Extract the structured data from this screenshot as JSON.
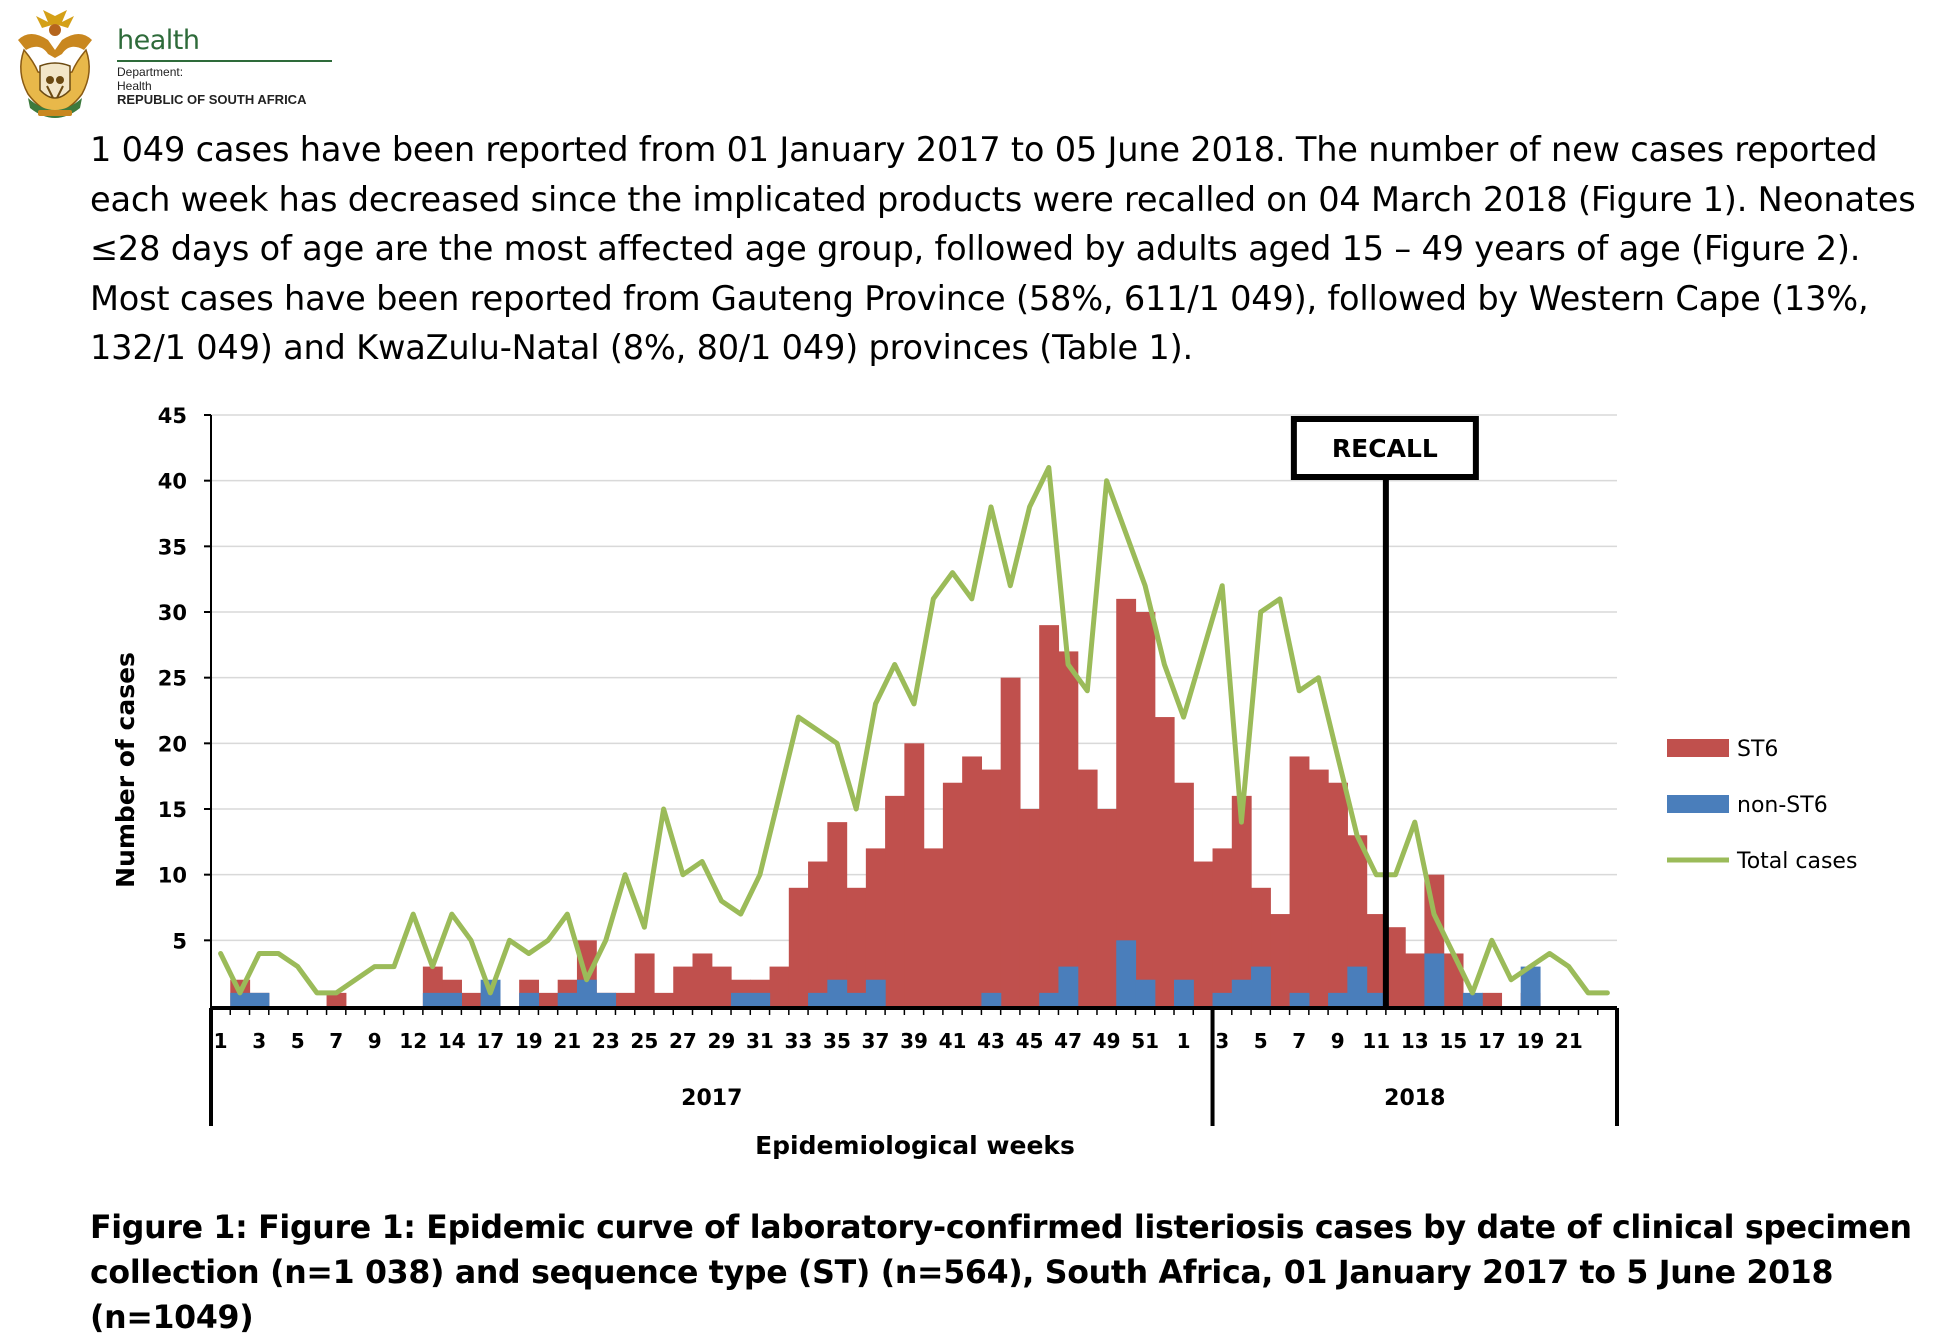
{
  "header": {
    "brand_word": "health",
    "brand_line1": "Department:",
    "brand_line2": "Health",
    "brand_line3": "REPUBLIC OF SOUTH AFRICA"
  },
  "intro_text": "1 049  cases have been reported from 01 January 2017 to 05 June 2018. The number of new cases reported each week has decreased since the implicated products were recalled on 04 March 2018 (Figure 1). Neonates ≤28 days of age are the most affected age group, followed by adults aged 15 – 49 years of age (Figure 2). Most cases have been reported from Gauteng Province (58%, 611/1 049), followed by Western Cape (13%, 132/1 049) and KwaZulu-Natal (8%, 80/1 049) provinces (Table 1).",
  "caption": "Figure 1: Figure 1: Epidemic curve of laboratory-confirmed listeriosis cases by date of clinical specimen collection (n=1 038) and sequence type (ST) (n=564), South Africa, 01 January 2017 to 5 June 2018 (n=1049)",
  "chart_data": {
    "type": "bar",
    "title": "",
    "xlabel": "Epidemiological weeks",
    "ylabel": "Number of cases",
    "ylim": [
      0,
      45
    ],
    "yticks": [
      5,
      10,
      15,
      20,
      25,
      30,
      35,
      40,
      45
    ],
    "grid": true,
    "legend_position": "right",
    "colors": {
      "ST6": "#c0504d",
      "non-ST6": "#4a7ebb",
      "Total cases": "#9bbb59"
    },
    "year_groups": [
      {
        "label": "2017",
        "weeks": 52
      },
      {
        "label": "2018",
        "weeks": 21
      }
    ],
    "weeks": [
      1,
      2,
      3,
      4,
      5,
      6,
      7,
      8,
      9,
      10,
      11,
      12,
      13,
      14,
      15,
      16,
      17,
      18,
      19,
      20,
      21,
      22,
      23,
      24,
      25,
      26,
      27,
      28,
      29,
      30,
      31,
      32,
      33,
      34,
      35,
      36,
      37,
      38,
      39,
      40,
      41,
      42,
      43,
      44,
      45,
      46,
      47,
      48,
      49,
      50,
      51,
      52,
      1,
      2,
      3,
      4,
      5,
      6,
      7,
      8,
      9,
      10,
      11,
      12,
      13,
      14,
      15,
      16,
      17,
      18,
      19,
      20,
      21
    ],
    "x_tick_labels": [
      "1",
      "",
      "3",
      "",
      "5",
      "",
      "7",
      "",
      "9",
      "",
      "12",
      "",
      "14",
      "",
      "17",
      "",
      "19",
      "",
      "21",
      "",
      "23",
      "",
      "25",
      "",
      "27",
      "",
      "29",
      "",
      "31",
      "",
      "33",
      "",
      "35",
      "",
      "37",
      "",
      "39",
      "",
      "41",
      "",
      "43",
      "",
      "45",
      "",
      "47",
      "",
      "49",
      "",
      "51",
      "",
      "1",
      "",
      "3",
      "",
      "5",
      "",
      "7",
      "",
      "9",
      "",
      "11",
      "",
      "13",
      "",
      "15",
      "",
      "17",
      "",
      "19",
      "",
      "21"
    ],
    "series": [
      {
        "name": "ST6",
        "values": [
          0,
          2,
          1,
          0,
          0,
          0,
          1,
          0,
          0,
          0,
          0,
          3,
          2,
          1,
          1,
          0,
          2,
          1,
          2,
          5,
          1,
          1,
          4,
          1,
          3,
          4,
          3,
          2,
          2,
          3,
          9,
          11,
          14,
          9,
          12,
          16,
          20,
          12,
          17,
          19,
          18,
          25,
          15,
          29,
          27,
          18,
          15,
          31,
          30,
          22,
          17,
          11,
          12,
          16,
          9,
          7,
          19,
          18,
          17,
          13,
          7,
          6,
          4,
          10,
          4,
          0,
          1,
          0,
          1,
          0,
          0,
          0,
          0
        ]
      },
      {
        "name": "non-ST6",
        "values": [
          0,
          1,
          1,
          0,
          0,
          0,
          0,
          0,
          0,
          0,
          0,
          1,
          1,
          0,
          2,
          0,
          1,
          0,
          1,
          2,
          1,
          0,
          0,
          0,
          0,
          0,
          0,
          1,
          1,
          0,
          0,
          1,
          2,
          1,
          2,
          0,
          0,
          0,
          0,
          0,
          1,
          0,
          0,
          1,
          3,
          0,
          0,
          5,
          2,
          0,
          2,
          0,
          1,
          2,
          3,
          0,
          1,
          0,
          1,
          3,
          1,
          0,
          0,
          4,
          0,
          1,
          0,
          0,
          3,
          0,
          0,
          0,
          0
        ]
      },
      {
        "name": "Total cases",
        "values": [
          4,
          1,
          4,
          4,
          3,
          1,
          1,
          2,
          3,
          3,
          7,
          3,
          7,
          5,
          1,
          5,
          4,
          5,
          7,
          2,
          5,
          10,
          6,
          15,
          10,
          11,
          8,
          7,
          10,
          16,
          22,
          21,
          20,
          15,
          23,
          26,
          23,
          31,
          33,
          31,
          38,
          32,
          38,
          41,
          26,
          24,
          40,
          36,
          32,
          26,
          22,
          27,
          32,
          14,
          30,
          31,
          24,
          25,
          19,
          13,
          10,
          10,
          14,
          7,
          4,
          1,
          5,
          2,
          3,
          4,
          3,
          1,
          1
        ]
      }
    ],
    "annotation": {
      "label": "RECALL",
      "at_index": 61
    }
  }
}
